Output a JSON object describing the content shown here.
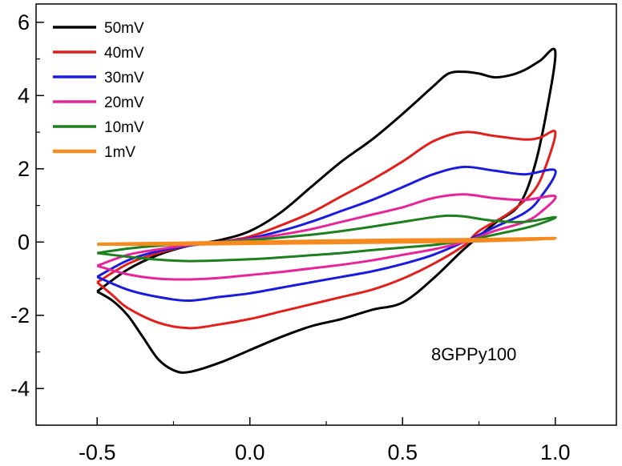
{
  "chart_data": {
    "type": "line",
    "title": "",
    "xlabel": "",
    "ylabel": "",
    "xlim": [
      -0.7,
      1.2
    ],
    "ylim": [
      -5,
      6.5
    ],
    "x_ticks": [
      -0.5,
      0.0,
      0.5,
      1.0
    ],
    "x_tick_labels": [
      "-0.5",
      "0.0",
      "0.5",
      "1.0"
    ],
    "y_ticks": [
      -4,
      -2,
      0,
      2,
      4,
      6
    ],
    "y_tick_labels": [
      "-4",
      "-2",
      "0",
      "2",
      "4",
      "6"
    ],
    "grid": false,
    "legend_position": "top-left",
    "annotation": "8GPPy100",
    "series": [
      {
        "name": "50mV",
        "color": "#000000",
        "forward": [
          [
            -0.5,
            -1.35
          ],
          [
            -0.4,
            -0.75
          ],
          [
            -0.3,
            -0.35
          ],
          [
            -0.2,
            -0.1
          ],
          [
            -0.1,
            0.05
          ],
          [
            0.0,
            0.3
          ],
          [
            0.1,
            0.8
          ],
          [
            0.2,
            1.5
          ],
          [
            0.3,
            2.2
          ],
          [
            0.4,
            2.8
          ],
          [
            0.5,
            3.5
          ],
          [
            0.6,
            4.25
          ],
          [
            0.65,
            4.6
          ],
          [
            0.7,
            4.65
          ],
          [
            0.75,
            4.6
          ],
          [
            0.8,
            4.5
          ],
          [
            0.85,
            4.55
          ],
          [
            0.9,
            4.7
          ],
          [
            0.95,
            4.95
          ],
          [
            1.0,
            5.2
          ]
        ],
        "reverse": [
          [
            1.0,
            5.2
          ],
          [
            0.97,
            3.5
          ],
          [
            0.93,
            2.0
          ],
          [
            0.88,
            1.0
          ],
          [
            0.8,
            0.5
          ],
          [
            0.7,
            -0.2
          ],
          [
            0.6,
            -1.0
          ],
          [
            0.5,
            -1.65
          ],
          [
            0.4,
            -1.85
          ],
          [
            0.3,
            -2.1
          ],
          [
            0.2,
            -2.3
          ],
          [
            0.1,
            -2.6
          ],
          [
            0.0,
            -2.95
          ],
          [
            -0.1,
            -3.3
          ],
          [
            -0.2,
            -3.55
          ],
          [
            -0.25,
            -3.5
          ],
          [
            -0.3,
            -3.2
          ],
          [
            -0.35,
            -2.6
          ],
          [
            -0.4,
            -2.0
          ],
          [
            -0.45,
            -1.6
          ],
          [
            -0.5,
            -1.35
          ]
        ]
      },
      {
        "name": "40mV",
        "color": "#e0201c",
        "forward": [
          [
            -0.5,
            -1.1
          ],
          [
            -0.4,
            -0.6
          ],
          [
            -0.3,
            -0.3
          ],
          [
            -0.2,
            -0.1
          ],
          [
            -0.1,
            0.0
          ],
          [
            0.0,
            0.15
          ],
          [
            0.1,
            0.45
          ],
          [
            0.2,
            0.8
          ],
          [
            0.3,
            1.25
          ],
          [
            0.4,
            1.7
          ],
          [
            0.5,
            2.2
          ],
          [
            0.6,
            2.75
          ],
          [
            0.7,
            3.0
          ],
          [
            0.8,
            2.9
          ],
          [
            0.9,
            2.8
          ],
          [
            0.95,
            2.85
          ],
          [
            1.0,
            3.0
          ]
        ],
        "reverse": [
          [
            1.0,
            3.0
          ],
          [
            0.97,
            2.1
          ],
          [
            0.93,
            1.4
          ],
          [
            0.85,
            0.8
          ],
          [
            0.75,
            0.3
          ],
          [
            0.7,
            -0.1
          ],
          [
            0.6,
            -0.6
          ],
          [
            0.5,
            -1.0
          ],
          [
            0.4,
            -1.3
          ],
          [
            0.3,
            -1.5
          ],
          [
            0.2,
            -1.7
          ],
          [
            0.1,
            -1.9
          ],
          [
            0.0,
            -2.1
          ],
          [
            -0.1,
            -2.25
          ],
          [
            -0.2,
            -2.35
          ],
          [
            -0.3,
            -2.2
          ],
          [
            -0.4,
            -1.8
          ],
          [
            -0.45,
            -1.45
          ],
          [
            -0.5,
            -1.1
          ]
        ]
      },
      {
        "name": "30mV",
        "color": "#1b1bdc",
        "forward": [
          [
            -0.5,
            -0.95
          ],
          [
            -0.4,
            -0.5
          ],
          [
            -0.3,
            -0.25
          ],
          [
            -0.2,
            -0.1
          ],
          [
            -0.1,
            0.0
          ],
          [
            0.0,
            0.1
          ],
          [
            0.1,
            0.3
          ],
          [
            0.2,
            0.55
          ],
          [
            0.3,
            0.85
          ],
          [
            0.4,
            1.15
          ],
          [
            0.5,
            1.5
          ],
          [
            0.6,
            1.85
          ],
          [
            0.7,
            2.05
          ],
          [
            0.8,
            1.95
          ],
          [
            0.9,
            1.85
          ],
          [
            1.0,
            1.95
          ]
        ],
        "reverse": [
          [
            1.0,
            1.95
          ],
          [
            0.95,
            1.2
          ],
          [
            0.9,
            0.8
          ],
          [
            0.8,
            0.4
          ],
          [
            0.7,
            0.0
          ],
          [
            0.6,
            -0.35
          ],
          [
            0.5,
            -0.6
          ],
          [
            0.4,
            -0.8
          ],
          [
            0.3,
            -0.95
          ],
          [
            0.2,
            -1.1
          ],
          [
            0.1,
            -1.25
          ],
          [
            0.0,
            -1.4
          ],
          [
            -0.1,
            -1.5
          ],
          [
            -0.2,
            -1.6
          ],
          [
            -0.3,
            -1.5
          ],
          [
            -0.4,
            -1.3
          ],
          [
            -0.5,
            -0.95
          ]
        ]
      },
      {
        "name": "20mV",
        "color": "#e6259a",
        "forward": [
          [
            -0.5,
            -0.65
          ],
          [
            -0.4,
            -0.35
          ],
          [
            -0.3,
            -0.2
          ],
          [
            -0.2,
            -0.08
          ],
          [
            -0.1,
            0.0
          ],
          [
            0.0,
            0.08
          ],
          [
            0.1,
            0.2
          ],
          [
            0.2,
            0.35
          ],
          [
            0.3,
            0.55
          ],
          [
            0.4,
            0.75
          ],
          [
            0.5,
            0.95
          ],
          [
            0.6,
            1.2
          ],
          [
            0.7,
            1.3
          ],
          [
            0.8,
            1.2
          ],
          [
            0.9,
            1.15
          ],
          [
            1.0,
            1.25
          ]
        ],
        "reverse": [
          [
            1.0,
            1.25
          ],
          [
            0.95,
            0.8
          ],
          [
            0.9,
            0.55
          ],
          [
            0.8,
            0.3
          ],
          [
            0.7,
            0.0
          ],
          [
            0.6,
            -0.2
          ],
          [
            0.5,
            -0.35
          ],
          [
            0.4,
            -0.5
          ],
          [
            0.3,
            -0.62
          ],
          [
            0.2,
            -0.72
          ],
          [
            0.1,
            -0.82
          ],
          [
            0.0,
            -0.9
          ],
          [
            -0.1,
            -0.98
          ],
          [
            -0.2,
            -1.02
          ],
          [
            -0.3,
            -1.0
          ],
          [
            -0.4,
            -0.88
          ],
          [
            -0.5,
            -0.65
          ]
        ]
      },
      {
        "name": "10mV",
        "color": "#1e7f1e",
        "forward": [
          [
            -0.5,
            -0.3
          ],
          [
            -0.4,
            -0.18
          ],
          [
            -0.3,
            -0.1
          ],
          [
            -0.2,
            -0.05
          ],
          [
            -0.1,
            0.0
          ],
          [
            0.0,
            0.05
          ],
          [
            0.1,
            0.12
          ],
          [
            0.2,
            0.2
          ],
          [
            0.3,
            0.3
          ],
          [
            0.4,
            0.42
          ],
          [
            0.5,
            0.55
          ],
          [
            0.6,
            0.68
          ],
          [
            0.65,
            0.72
          ],
          [
            0.7,
            0.7
          ],
          [
            0.8,
            0.58
          ],
          [
            0.9,
            0.55
          ],
          [
            1.0,
            0.68
          ]
        ],
        "reverse": [
          [
            1.0,
            0.68
          ],
          [
            0.95,
            0.5
          ],
          [
            0.9,
            0.38
          ],
          [
            0.8,
            0.2
          ],
          [
            0.7,
            0.03
          ],
          [
            0.6,
            -0.08
          ],
          [
            0.5,
            -0.15
          ],
          [
            0.4,
            -0.22
          ],
          [
            0.3,
            -0.3
          ],
          [
            0.2,
            -0.36
          ],
          [
            0.1,
            -0.42
          ],
          [
            0.0,
            -0.47
          ],
          [
            -0.1,
            -0.5
          ],
          [
            -0.2,
            -0.52
          ],
          [
            -0.3,
            -0.48
          ],
          [
            -0.4,
            -0.4
          ],
          [
            -0.5,
            -0.3
          ]
        ]
      },
      {
        "name": "1mV",
        "color": "#f58a1f",
        "forward": [
          [
            -0.5,
            -0.06
          ],
          [
            -0.25,
            -0.03
          ],
          [
            0.0,
            0.0
          ],
          [
            0.25,
            0.03
          ],
          [
            0.5,
            0.06
          ],
          [
            0.75,
            0.07
          ],
          [
            1.0,
            0.1
          ]
        ],
        "reverse": [
          [
            1.0,
            0.1
          ],
          [
            0.75,
            0.03
          ],
          [
            0.5,
            0.0
          ],
          [
            0.25,
            -0.02
          ],
          [
            0.0,
            -0.04
          ],
          [
            -0.25,
            -0.06
          ],
          [
            -0.5,
            -0.06
          ]
        ]
      }
    ]
  }
}
